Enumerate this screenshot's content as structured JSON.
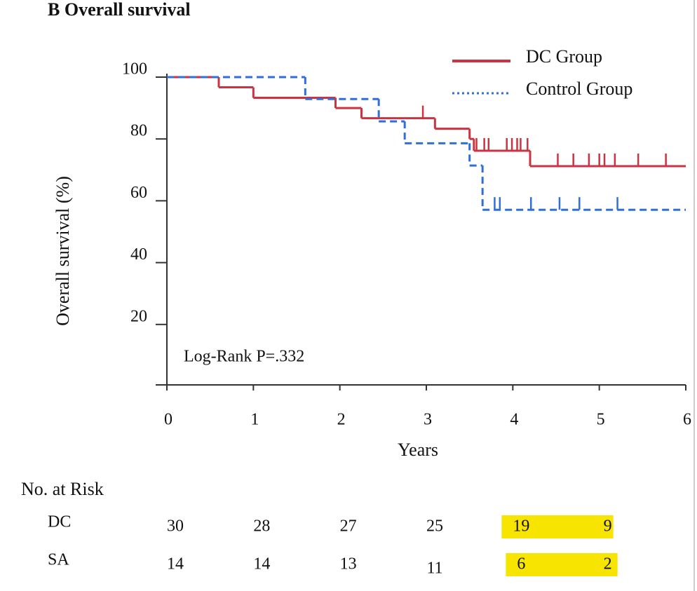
{
  "chart_data": {
    "type": "km",
    "title": "B Overall survival",
    "x_label": "Years",
    "y_label": "Overall survival (%)",
    "annotation": "Log-Rank P=.332",
    "xlim": [
      0,
      6
    ],
    "xticks": [
      0,
      1,
      2,
      3,
      4,
      5,
      6
    ],
    "ylim": [
      0,
      100
    ],
    "yticks": [
      20,
      40,
      60,
      80,
      100
    ],
    "series": [
      {
        "name": "DC Group",
        "color": "#cc3340",
        "line_style": "solid",
        "x": [
          0,
          0.6,
          1.0,
          1.95,
          2.25,
          3.1,
          3.5,
          3.55,
          4.2
        ],
        "values": [
          100,
          96.7,
          93.3,
          90,
          86.7,
          83.3,
          80,
          76.2,
          71.2
        ],
        "censor_x": [
          2.96,
          3.58,
          3.67,
          3.72,
          3.93,
          3.99,
          4.05,
          4.09,
          4.17,
          4.52,
          4.7,
          4.88,
          5.0,
          5.06,
          5.18,
          5.45,
          5.77
        ],
        "censor_values": [
          86.7,
          76.2,
          76.2,
          76.2,
          76.2,
          76.2,
          76.2,
          76.2,
          76.2,
          71.2,
          71.2,
          71.2,
          71.2,
          71.2,
          71.2,
          71.2,
          71.2
        ]
      },
      {
        "name": "Control Group",
        "color": "#2f6fd8",
        "line_style": "dashed",
        "x": [
          0,
          1.6,
          2.45,
          2.75,
          3.5,
          3.65
        ],
        "values": [
          100,
          92.9,
          85.7,
          78.6,
          71.4,
          57.1
        ],
        "censor_x": [
          3.79,
          3.85,
          4.21,
          4.54,
          4.77,
          5.21
        ],
        "censor_values": [
          57.1,
          57.1,
          57.1,
          57.1,
          57.1,
          57.1
        ]
      }
    ],
    "risk_table": {
      "title": "No. at Risk",
      "rows": [
        {
          "label": "DC",
          "values": [
            30,
            28,
            27,
            25,
            19,
            9
          ]
        },
        {
          "label": "SA",
          "values": [
            14,
            14,
            13,
            11,
            6,
            2
          ]
        }
      ],
      "highlight_columns": [
        4,
        5
      ],
      "highlight_color": "#f7e400"
    }
  }
}
